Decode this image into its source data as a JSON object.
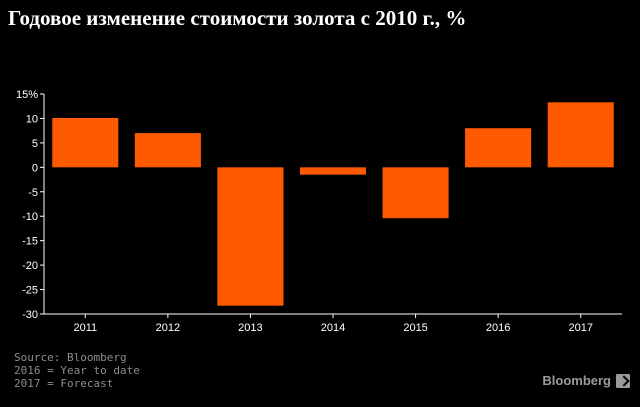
{
  "chart_data": {
    "type": "bar",
    "title": "Годовое изменение стоимости золота с 2010 г., %",
    "categories": [
      "2011",
      "2012",
      "2013",
      "2014",
      "2015",
      "2016",
      "2017"
    ],
    "values": [
      10.1,
      7.0,
      -28.3,
      -1.5,
      -10.4,
      8.0,
      13.3
    ],
    "ylim": [
      -30,
      15
    ],
    "yticks": [
      15,
      10,
      5,
      0,
      -5,
      -10,
      -15,
      -20,
      -25,
      -30
    ],
    "ytick_labels": [
      "15%",
      "10",
      "5",
      "0",
      "-5",
      "-10",
      "-15",
      "-20",
      "-25",
      "-30"
    ],
    "bar_color": "#ff5a00",
    "grid": false,
    "xlabel": "",
    "ylabel": ""
  },
  "notes": {
    "source": "Source: Bloomberg",
    "note_2016": "2016 = Year to date",
    "note_2017": "2017 = Forecast"
  },
  "brand": {
    "name": "Bloomberg",
    "icon": "bloomberg-terminal-icon"
  }
}
